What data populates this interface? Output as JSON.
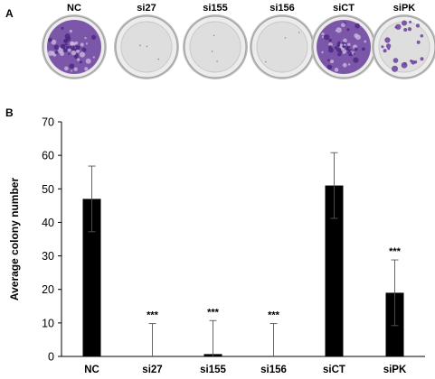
{
  "panels": {
    "a_label": "A",
    "b_label": "B"
  },
  "plates": [
    {
      "label": "NC",
      "colony_density": "high"
    },
    {
      "label": "si27",
      "colony_density": "none"
    },
    {
      "label": "si155",
      "colony_density": "none"
    },
    {
      "label": "si156",
      "colony_density": "none"
    },
    {
      "label": "siCT",
      "colony_density": "high"
    },
    {
      "label": "siPK",
      "colony_density": "low"
    }
  ],
  "colors": {
    "stain": "#6b3fa0",
    "bar": "#000000",
    "plate_bg": "#e6e6e6"
  },
  "chart_data": {
    "type": "bar",
    "categories": [
      "NC",
      "si27",
      "si155",
      "si156",
      "siCT",
      "siPK"
    ],
    "values": [
      47,
      0,
      0.7,
      0,
      51,
      19
    ],
    "error": [
      9.8,
      9.8,
      10,
      9.8,
      9.8,
      9.8
    ],
    "significance": [
      "",
      "***",
      "***",
      "***",
      "",
      "***"
    ],
    "ylabel": "Average colony number",
    "xlabel": "",
    "ylim": [
      0,
      70
    ],
    "yticks": [
      0,
      10,
      20,
      30,
      40,
      50,
      60,
      70
    ],
    "grid": false
  }
}
